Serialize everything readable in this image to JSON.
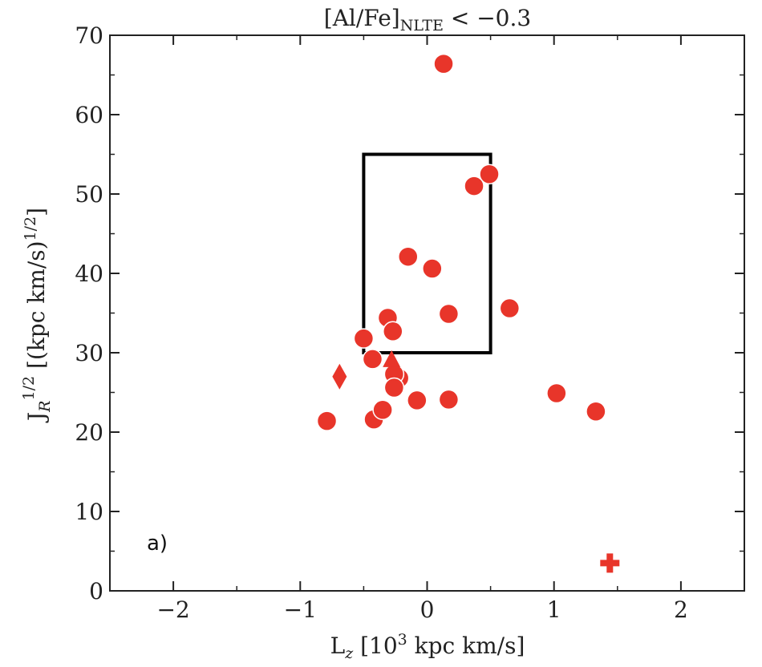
{
  "chart_data": {
    "type": "scatter",
    "title": "[Al/Fe]NLTE < −0.3",
    "title_parts": {
      "main": "[Al/Fe]",
      "sub": "NLTE",
      "rest": " < −0.3"
    },
    "xlabel": "Lz [10³ kpc km/s]",
    "xlabel_parts": {
      "main": "L",
      "sub": "z",
      "rest": " [10",
      "sup": "3",
      "tail": " kpc km/s]"
    },
    "ylabel": "JR1/2 [(kpc km/s)1/2]",
    "ylabel_parts": {
      "main": "J",
      "sub": "R",
      "sup": "1/2",
      "rest": " [(kpc km/s)",
      "sup2": "1/2",
      "tail": "]"
    },
    "xlim": [
      -2.5,
      2.5
    ],
    "ylim": [
      0,
      70
    ],
    "xticks": [
      "−2",
      "−1",
      "0",
      "1",
      "2"
    ],
    "xtick_values": [
      -2,
      -1,
      0,
      1,
      2
    ],
    "yticks": [
      "0",
      "10",
      "20",
      "30",
      "40",
      "50",
      "60",
      "70"
    ],
    "ytick_values": [
      0,
      10,
      20,
      30,
      40,
      50,
      60,
      70
    ],
    "grid": false,
    "color": "#e8352a",
    "panel_label": "a)",
    "box": {
      "x0": -0.5,
      "x1": 0.5,
      "y0": 30,
      "y1": 55
    },
    "series": [
      {
        "marker": "circle",
        "x": [
          0.13,
          0.49,
          0.37,
          -0.15,
          0.04,
          0.65,
          0.17,
          -0.31,
          -0.27,
          -0.5,
          -0.43,
          -0.22,
          -0.26,
          -0.26,
          -0.79,
          -0.42,
          -0.35,
          -0.08,
          0.17,
          1.02,
          1.33
        ],
        "y": [
          66.4,
          52.5,
          51.0,
          42.1,
          40.6,
          35.6,
          34.9,
          34.4,
          32.7,
          31.8,
          29.2,
          26.8,
          27.3,
          25.6,
          21.4,
          21.6,
          22.8,
          24.0,
          24.1,
          24.9,
          22.6
        ]
      },
      {
        "marker": "triangle",
        "x": [
          -0.28
        ],
        "y": [
          29.0
        ]
      },
      {
        "marker": "diamond",
        "x": [
          -0.69
        ],
        "y": [
          27.0
        ]
      },
      {
        "marker": "cross",
        "x": [
          1.44
        ],
        "y": [
          3.5
        ]
      }
    ]
  }
}
